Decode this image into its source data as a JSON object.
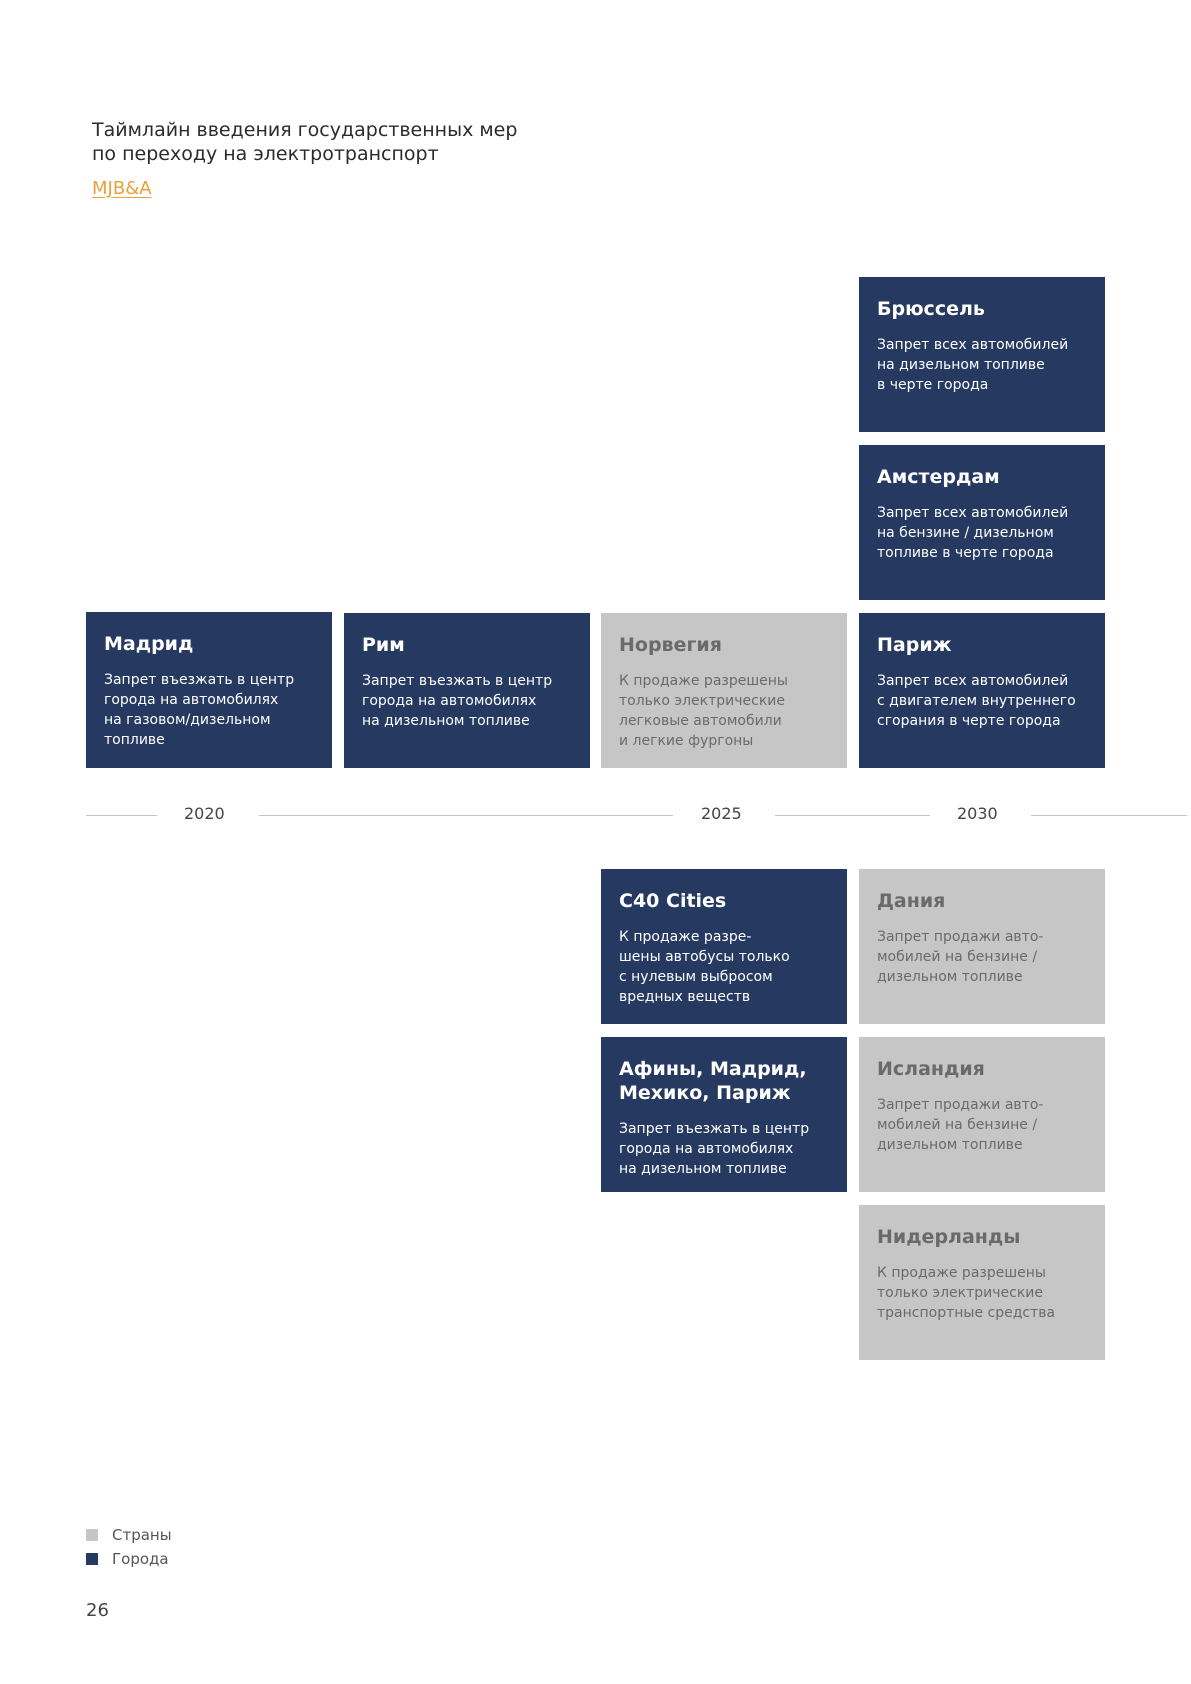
{
  "header": {
    "title_line1": "Таймлайн введения государственных мер",
    "title_line2": "по переходу на электротранспорт",
    "source": "MJB&A"
  },
  "colors": {
    "city": "#263961",
    "country": "#c6c6c6",
    "accent": "#e8a23c"
  },
  "timeline": {
    "years": [
      "2020",
      "2025",
      "2030"
    ],
    "above": [
      {
        "title": "Брюссель",
        "text": "Запрет всех автомобилей\nна дизельном топливе\nв черте города",
        "type": "city"
      },
      {
        "title": "Амстердам",
        "text": "Запрет всех автомобилей\nна бензине / дизельном\nтопливе в черте города",
        "type": "city"
      },
      {
        "title": "Мадрид",
        "text": "Запрет въезжать в центр\nгорода на автомобилях\nна газовом/дизельном\nтопливе",
        "type": "city"
      },
      {
        "title": "Рим",
        "text": "Запрет въезжать в центр\nгорода на автомобилях\nна дизельном топливе",
        "type": "city"
      },
      {
        "title": "Норвегия",
        "text": "К продаже разрешены\nтолько электрические\nлегковые автомобили\nи легкие фургоны",
        "type": "country"
      },
      {
        "title": "Париж",
        "text": "Запрет всех автомобилей\nс двигателем внутреннего\nсгорания в черте города",
        "type": "city"
      }
    ],
    "below": [
      {
        "title": "C40 Cities",
        "text": "К продаже разре-\nшены автобусы только\nс нулевым выбросом\nвредных веществ",
        "type": "city"
      },
      {
        "title": "Дания",
        "text": "Запрет продажи авто-\nмобилей на бензине /\nдизельном топливе",
        "type": "country"
      },
      {
        "title": "Афины, Мадрид,\nМехико, Париж",
        "text": "Запрет въезжать в центр\nгорода на автомобилях\nна дизельном топливе",
        "type": "city"
      },
      {
        "title": "Исландия",
        "text": "Запрет продажи авто-\nмобилей на бензине /\nдизельном топливе",
        "type": "country"
      },
      {
        "title": "Нидерланды",
        "text": "К продаже разрешены\nтолько электрические\nтранспортные средства",
        "type": "country"
      }
    ]
  },
  "legend": {
    "countries": "Страны",
    "cities": "Города"
  },
  "page_number": "26"
}
